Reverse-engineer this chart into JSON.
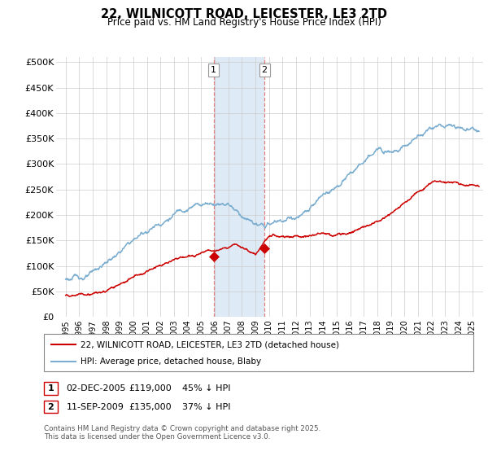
{
  "title": "22, WILNICOTT ROAD, LEICESTER, LE3 2TD",
  "subtitle": "Price paid vs. HM Land Registry's House Price Index (HPI)",
  "ytick_labels": [
    "£0",
    "£50K",
    "£100K",
    "£150K",
    "£200K",
    "£250K",
    "£300K",
    "£350K",
    "£400K",
    "£450K",
    "£500K"
  ],
  "ytick_vals": [
    0,
    50000,
    100000,
    150000,
    200000,
    250000,
    300000,
    350000,
    400000,
    450000,
    500000
  ],
  "ylim": [
    0,
    510000
  ],
  "xlim_min": 1994.3,
  "xlim_max": 2025.8,
  "hpi_color": "#7aadcf",
  "price_color": "#cc0000",
  "sale1_date_num": 2005.92,
  "sale1_price": 119000,
  "sale2_date_num": 2009.67,
  "sale2_price": 135000,
  "legend_line1": "22, WILNICOTT ROAD, LEICESTER, LE3 2TD (detached house)",
  "legend_line2": "HPI: Average price, detached house, Blaby",
  "footnote": "Contains HM Land Registry data © Crown copyright and database right 2025.\nThis data is licensed under the Open Government Licence v3.0.",
  "background_color": "#ffffff",
  "grid_color": "#cccccc",
  "shade_color": "#deeaf5"
}
